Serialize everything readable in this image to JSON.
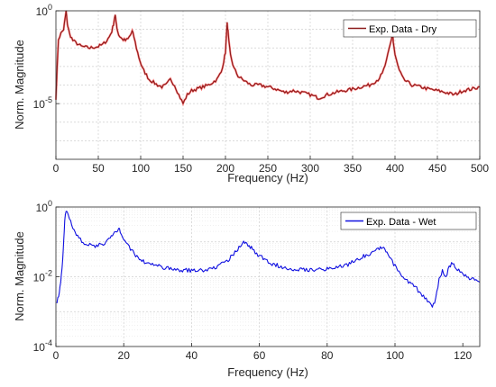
{
  "chart_data": [
    {
      "type": "line",
      "xlabel": "Frequency (Hz)",
      "ylabel": "Norm. Magnitude",
      "xlim": [
        0,
        500
      ],
      "ylim": [
        1e-08,
        1
      ],
      "yscale": "log",
      "grid": true,
      "minor_grid": true,
      "legend_position": "top-right",
      "x_ticks": [
        0,
        50,
        100,
        150,
        200,
        250,
        300,
        350,
        400,
        450,
        500
      ],
      "x_tick_labels": [
        "0",
        "50",
        "100",
        "150",
        "200",
        "250",
        "300",
        "350",
        "400",
        "450",
        "500"
      ],
      "y_tick_labels": [
        {
          "base": "10",
          "exp": "0",
          "value": 1
        },
        {
          "base": "10",
          "exp": "-5",
          "value": 1e-05
        }
      ],
      "series": [
        {
          "name": "Exp. Data - Dry",
          "color": "#8B1A1A",
          "noise_color": "#FF2020",
          "x": [
            0,
            3,
            6,
            9,
            11,
            12,
            13,
            14,
            16,
            20,
            30,
            40,
            50,
            55,
            60,
            63,
            66,
            68,
            69,
            70,
            71,
            72,
            74,
            78,
            82,
            85,
            88,
            90,
            92,
            95,
            98,
            102,
            110,
            120,
            125,
            130,
            135,
            140,
            145,
            150,
            155,
            160,
            170,
            180,
            190,
            195,
            198,
            200,
            202,
            203,
            204,
            206,
            210,
            215,
            220,
            230,
            240,
            250,
            260,
            270,
            280,
            290,
            300,
            310,
            320,
            330,
            340,
            350,
            360,
            370,
            380,
            385,
            390,
            393,
            396,
            397,
            398,
            400,
            405,
            410,
            420,
            430,
            440,
            450,
            460,
            470,
            480,
            490,
            500
          ],
          "y": [
            2e-05,
            0.03,
            0.06,
            0.1,
            0.4,
            1,
            0.3,
            0.15,
            0.06,
            0.025,
            0.012,
            0.01,
            0.012,
            0.015,
            0.025,
            0.04,
            0.08,
            0.2,
            0.4,
            0.5,
            0.3,
            0.12,
            0.05,
            0.03,
            0.025,
            0.03,
            0.05,
            0.08,
            0.04,
            0.01,
            0.003,
            0.0008,
            0.0002,
            0.0001,
            8e-05,
            0.0001,
            0.0002,
            0.0001,
            3e-05,
            1e-05,
            3e-05,
            5e-05,
            7e-05,
            0.0001,
            0.0002,
            0.0005,
            0.002,
            0.006,
            0.2,
            0.08,
            0.02,
            0.004,
            0.0008,
            0.0003,
            0.0002,
            0.0001,
            0.0001,
            8e-05,
            6e-05,
            4e-05,
            5e-05,
            4e-05,
            3e-05,
            2e-05,
            3e-05,
            4e-05,
            5e-05,
            6e-05,
            8e-05,
            0.0001,
            0.0002,
            0.0004,
            0.002,
            0.008,
            0.03,
            0.08,
            0.02,
            0.004,
            0.0006,
            0.0002,
            0.0001,
            8e-05,
            6e-05,
            5e-05,
            4e-05,
            3e-05,
            5e-05,
            6e-05,
            8e-05
          ]
        }
      ]
    },
    {
      "type": "line",
      "xlabel": "Frequency (Hz)",
      "ylabel": "Norm. Magnitude",
      "xlim": [
        0,
        125
      ],
      "ylim": [
        0.0001,
        1
      ],
      "yscale": "log",
      "grid": true,
      "minor_grid": true,
      "legend_position": "top-right",
      "x_ticks": [
        0,
        20,
        40,
        60,
        80,
        100,
        120
      ],
      "x_tick_labels": [
        "0",
        "20",
        "40",
        "60",
        "80",
        "100",
        "120"
      ],
      "y_tick_labels": [
        {
          "base": "10",
          "exp": "0",
          "value": 1
        },
        {
          "base": "10",
          "exp": "-2",
          "value": 0.01
        },
        {
          "base": "10",
          "exp": "-4",
          "value": 0.0001
        }
      ],
      "series": [
        {
          "name": "Exp. Data - Wet",
          "color": "#1010E0",
          "x": [
            0.3,
            0.8,
            1.2,
            1.6,
            2.0,
            2.3,
            2.6,
            3.0,
            4,
            5,
            6,
            8,
            10,
            12,
            14,
            16,
            17,
            18,
            18.5,
            19,
            20,
            22,
            25,
            30,
            35,
            40,
            45,
            50,
            52,
            54,
            55,
            56,
            57,
            58,
            60,
            63,
            66,
            70,
            75,
            80,
            85,
            90,
            93,
            95,
            96,
            97,
            98,
            100,
            102,
            104,
            106,
            108,
            110,
            111,
            112,
            113,
            114,
            115,
            116,
            117,
            118,
            120,
            122,
            125
          ],
          "y": [
            0.002,
            0.003,
            0.005,
            0.01,
            0.03,
            0.1,
            0.4,
            0.85,
            0.5,
            0.25,
            0.15,
            0.1,
            0.08,
            0.075,
            0.09,
            0.13,
            0.17,
            0.21,
            0.23,
            0.2,
            0.13,
            0.06,
            0.03,
            0.02,
            0.016,
            0.015,
            0.016,
            0.025,
            0.04,
            0.07,
            0.09,
            0.095,
            0.08,
            0.06,
            0.04,
            0.025,
            0.02,
            0.017,
            0.016,
            0.017,
            0.02,
            0.035,
            0.05,
            0.065,
            0.07,
            0.06,
            0.045,
            0.02,
            0.01,
            0.007,
            0.005,
            0.003,
            0.002,
            0.0012,
            0.0025,
            0.008,
            0.014,
            0.01,
            0.02,
            0.025,
            0.018,
            0.012,
            0.009,
            0.007
          ]
        }
      ]
    }
  ]
}
